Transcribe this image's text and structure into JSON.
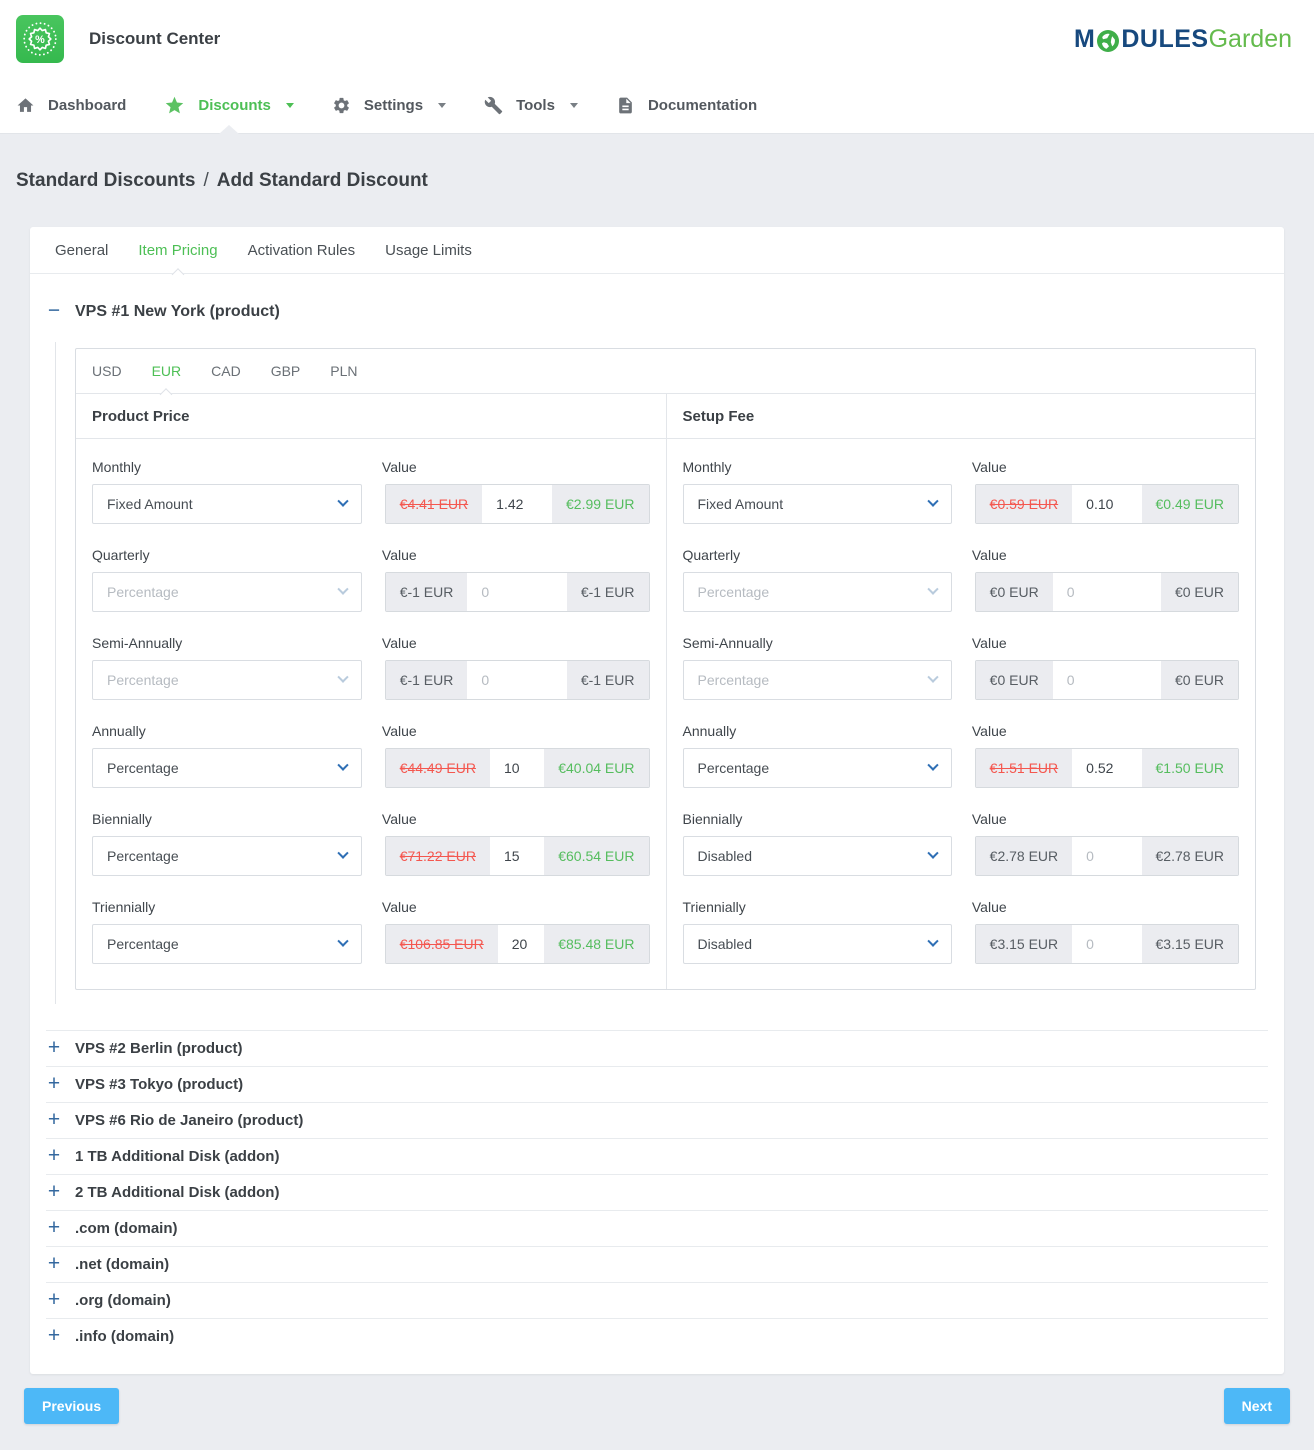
{
  "header": {
    "title": "Discount Center",
    "logo_icon": "percent-badge-icon",
    "brand": {
      "prefix": "M",
      "globe_icon": "globe-icon",
      "middle": "DULES",
      "suffix": "Garden"
    }
  },
  "nav": {
    "items": [
      {
        "label": "Dashboard",
        "icon": "home-icon",
        "active": false,
        "caret": false
      },
      {
        "label": "Discounts",
        "icon": "star-icon",
        "active": true,
        "caret": true
      },
      {
        "label": "Settings",
        "icon": "gear-icon",
        "active": false,
        "caret": true
      },
      {
        "label": "Tools",
        "icon": "wrench-icon",
        "active": false,
        "caret": true
      },
      {
        "label": "Documentation",
        "icon": "document-icon",
        "active": false,
        "caret": false
      }
    ]
  },
  "breadcrumb": {
    "section": "Standard Discounts",
    "separator": "/",
    "page": "Add Standard Discount"
  },
  "main_tabs": {
    "items": [
      {
        "label": "General",
        "active": false
      },
      {
        "label": "Item Pricing",
        "active": true
      },
      {
        "label": "Activation Rules",
        "active": false
      },
      {
        "label": "Usage Limits",
        "active": false
      }
    ]
  },
  "expanded_item": {
    "title": "VPS #1 New York (product)"
  },
  "currency_tabs": {
    "items": [
      {
        "label": "USD",
        "active": false
      },
      {
        "label": "EUR",
        "active": true
      },
      {
        "label": "CAD",
        "active": false
      },
      {
        "label": "GBP",
        "active": false
      },
      {
        "label": "PLN",
        "active": false
      }
    ]
  },
  "pricing": {
    "columns": [
      {
        "title": "Product Price",
        "value_label": "Value",
        "rows": [
          {
            "cycle": "Monthly",
            "option": "Fixed Amount",
            "select_muted": false,
            "old_price": "€4.41 EUR",
            "amount": "1.42",
            "amount_is_placeholder": false,
            "new_price": "€2.99 EUR",
            "discount_active": true
          },
          {
            "cycle": "Quarterly",
            "option": "Percentage",
            "select_muted": true,
            "old_price": "€-1 EUR",
            "amount": "0",
            "amount_is_placeholder": true,
            "new_price": "€-1 EUR",
            "discount_active": false
          },
          {
            "cycle": "Semi-Annually",
            "option": "Percentage",
            "select_muted": true,
            "old_price": "€-1 EUR",
            "amount": "0",
            "amount_is_placeholder": true,
            "new_price": "€-1 EUR",
            "discount_active": false
          },
          {
            "cycle": "Annually",
            "option": "Percentage",
            "select_muted": false,
            "old_price": "€44.49 EUR",
            "amount": "10",
            "amount_is_placeholder": false,
            "new_price": "€40.04 EUR",
            "discount_active": true
          },
          {
            "cycle": "Biennially",
            "option": "Percentage",
            "select_muted": false,
            "old_price": "€71.22 EUR",
            "amount": "15",
            "amount_is_placeholder": false,
            "new_price": "€60.54 EUR",
            "discount_active": true
          },
          {
            "cycle": "Triennially",
            "option": "Percentage",
            "select_muted": false,
            "old_price": "€106.85 EUR",
            "amount": "20",
            "amount_is_placeholder": false,
            "new_price": "€85.48 EUR",
            "discount_active": true
          }
        ]
      },
      {
        "title": "Setup Fee",
        "value_label": "Value",
        "rows": [
          {
            "cycle": "Monthly",
            "option": "Fixed Amount",
            "select_muted": false,
            "old_price": "€0.59 EUR",
            "amount": "0.10",
            "amount_is_placeholder": false,
            "new_price": "€0.49 EUR",
            "discount_active": true
          },
          {
            "cycle": "Quarterly",
            "option": "Percentage",
            "select_muted": true,
            "old_price": "€0 EUR",
            "amount": "0",
            "amount_is_placeholder": true,
            "new_price": "€0 EUR",
            "discount_active": false
          },
          {
            "cycle": "Semi-Annually",
            "option": "Percentage",
            "select_muted": true,
            "old_price": "€0 EUR",
            "amount": "0",
            "amount_is_placeholder": true,
            "new_price": "€0 EUR",
            "discount_active": false
          },
          {
            "cycle": "Annually",
            "option": "Percentage",
            "select_muted": false,
            "old_price": "€1.51 EUR",
            "amount": "0.52",
            "amount_is_placeholder": false,
            "new_price": "€1.50 EUR",
            "discount_active": true
          },
          {
            "cycle": "Biennially",
            "option": "Disabled",
            "select_muted": false,
            "old_price": "€2.78 EUR",
            "amount": "0",
            "amount_is_placeholder": true,
            "new_price": "€2.78 EUR",
            "discount_active": false
          },
          {
            "cycle": "Triennially",
            "option": "Disabled",
            "select_muted": false,
            "old_price": "€3.15 EUR",
            "amount": "0",
            "amount_is_placeholder": true,
            "new_price": "€3.15 EUR",
            "discount_active": false
          }
        ]
      }
    ]
  },
  "collapsed_items": [
    "VPS #2 Berlin (product)",
    "VPS #3 Tokyo (product)",
    "VPS #6 Rio de Janeiro (product)",
    "1 TB Additional Disk (addon)",
    "2 TB Additional Disk (addon)",
    ".com (domain)",
    ".net (domain)",
    ".org (domain)",
    ".info (domain)"
  ],
  "icons": {
    "collapse": "−",
    "expand": "+"
  },
  "footer": {
    "previous_label": "Previous",
    "next_label": "Next"
  },
  "colors": {
    "accent_green": "#4dbf55",
    "icon_blue": "#34689f",
    "original_price_red": "#f4574f",
    "discounted_price_green": "#55bd5e",
    "button_blue": "#4db8f7",
    "logo_green": "#3fbd53",
    "brand_navy": "#17497e",
    "brand_green": "#64bb4d"
  }
}
